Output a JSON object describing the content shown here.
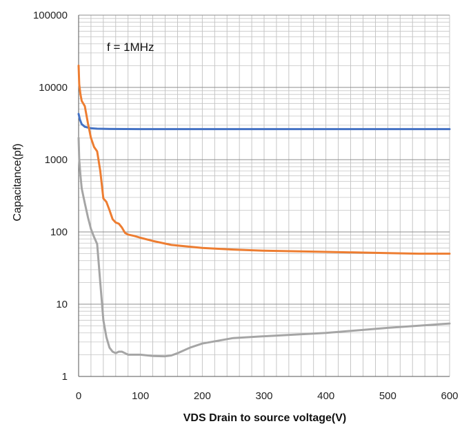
{
  "chart_data": {
    "type": "line",
    "title": "",
    "xlabel": "VDS Drain to source voltage(V)",
    "ylabel": "Capacitance(pf)",
    "annotation": "f = 1MHz",
    "xlim": [
      0,
      600
    ],
    "ylim": [
      1,
      100000
    ],
    "y_scale": "log",
    "grid": true,
    "x_ticks": [
      0,
      100,
      200,
      300,
      400,
      500,
      600
    ],
    "x_tick_labels": [
      "0",
      "100",
      "200",
      "300",
      "400",
      "500",
      "600"
    ],
    "y_ticks": [
      1,
      10,
      100,
      1000,
      10000,
      100000
    ],
    "y_tick_labels": [
      "1",
      "10",
      "100",
      "1000",
      "10000",
      "100000"
    ],
    "series": [
      {
        "color": "#4472C4",
        "x": [
          0,
          2,
          5,
          10,
          20,
          30,
          50,
          100,
          200,
          300,
          400,
          500,
          600
        ],
        "y": [
          4300,
          3600,
          3100,
          2850,
          2720,
          2680,
          2660,
          2650,
          2650,
          2650,
          2650,
          2650,
          2650
        ]
      },
      {
        "color": "#ED7D31",
        "x": [
          0,
          1,
          3,
          5,
          10,
          15,
          20,
          25,
          30,
          35,
          40,
          45,
          50,
          55,
          60,
          65,
          70,
          75,
          80,
          90,
          100,
          120,
          150,
          200,
          250,
          300,
          400,
          500,
          550,
          600
        ],
        "y": [
          20000,
          11000,
          8000,
          6500,
          5500,
          3200,
          2000,
          1500,
          1300,
          700,
          290,
          260,
          200,
          150,
          135,
          130,
          115,
          97,
          92,
          88,
          83,
          75,
          66,
          60,
          57,
          55,
          53,
          51,
          50,
          50
        ]
      },
      {
        "color": "#A5A5A5",
        "x": [
          0,
          1,
          3,
          5,
          10,
          15,
          20,
          25,
          30,
          35,
          40,
          45,
          50,
          55,
          60,
          65,
          70,
          75,
          80,
          90,
          100,
          120,
          140,
          150,
          160,
          180,
          200,
          250,
          300,
          400,
          500,
          600
        ],
        "y": [
          2000,
          1000,
          600,
          400,
          250,
          160,
          110,
          85,
          68,
          20,
          6,
          3.5,
          2.5,
          2.2,
          2.1,
          2.2,
          2.2,
          2.1,
          2.0,
          2.0,
          2.0,
          1.92,
          1.9,
          1.95,
          2.1,
          2.5,
          2.85,
          3.4,
          3.6,
          4.0,
          4.7,
          5.4
        ]
      }
    ]
  }
}
